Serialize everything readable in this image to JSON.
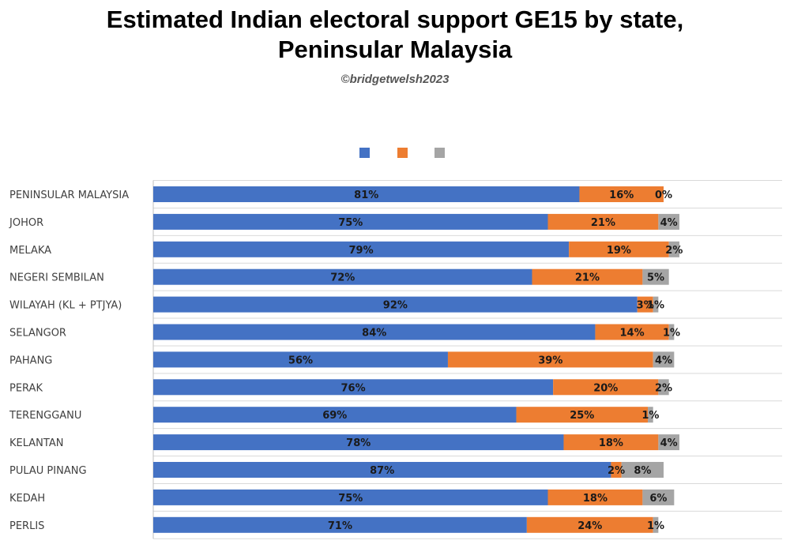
{
  "title_line1": "Estimated Indian electoral support GE15 by state,",
  "title_line2": "Peninsular Malaysia",
  "credit": "©bridgetwelsh2023",
  "colors": {
    "series1": "#4472c4",
    "series2": "#ed7d31",
    "series3": "#a5a5a5",
    "grid": "#d9d9d9",
    "axis": "#bfbfbf"
  },
  "chart_data": {
    "type": "bar",
    "orientation": "horizontal",
    "stacked": true,
    "categories": [
      "PENINSULAR MALAYSIA",
      "JOHOR",
      "MELAKA",
      "NEGERI SEMBILAN",
      "WILAYAH (KL + PTJYA)",
      "SELANGOR",
      "PAHANG",
      "PERAK",
      "TERENGGANU",
      "KELANTAN",
      "PULAU PINANG",
      "KEDAH",
      "PERLIS"
    ],
    "series": [
      {
        "values": [
          81,
          75,
          79,
          72,
          92,
          84,
          56,
          76,
          69,
          78,
          87,
          75,
          71
        ]
      },
      {
        "values": [
          16,
          21,
          19,
          21,
          3,
          14,
          39,
          20,
          25,
          18,
          2,
          18,
          24
        ]
      },
      {
        "values": [
          0,
          4,
          2,
          5,
          1,
          1,
          4,
          2,
          1,
          4,
          8,
          6,
          1
        ]
      }
    ],
    "data_labels": true,
    "legend": "top",
    "grid": true,
    "xlim": [
      0,
      120
    ]
  }
}
